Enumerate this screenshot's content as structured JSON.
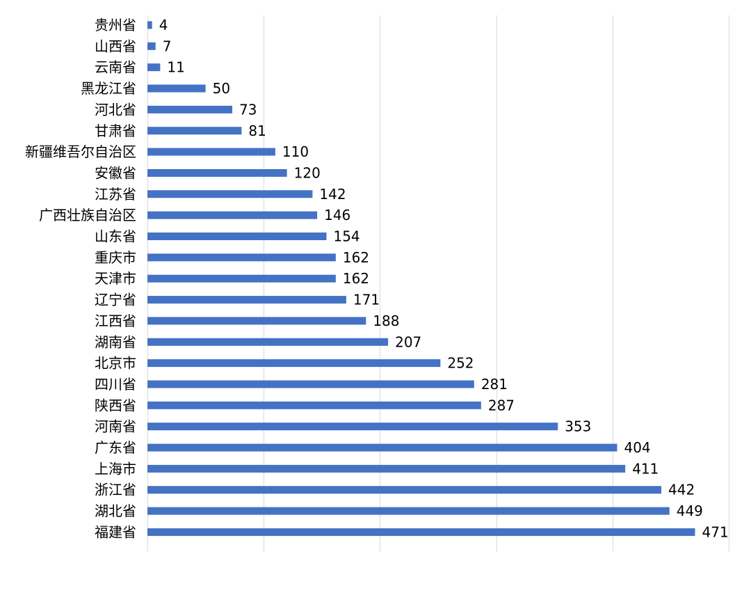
{
  "chart_data": {
    "type": "bar",
    "orientation": "horizontal",
    "categories": [
      "贵州省",
      "山西省",
      "云南省",
      "黑龙江省",
      "河北省",
      "甘肃省",
      "新疆维吾尔自治区",
      "安徽省",
      "江苏省",
      "广西壮族自治区",
      "山东省",
      "重庆市",
      "天津市",
      "辽宁省",
      "江西省",
      "湖南省",
      "北京市",
      "四川省",
      "陕西省",
      "河南省",
      "广东省",
      "上海市",
      "浙江省",
      "湖北省",
      "福建省"
    ],
    "values": [
      4,
      7,
      11,
      50,
      73,
      81,
      110,
      120,
      142,
      146,
      154,
      162,
      162,
      171,
      188,
      207,
      252,
      281,
      287,
      353,
      404,
      411,
      442,
      449,
      471
    ],
    "title": "",
    "xlabel": "",
    "ylabel": "",
    "xlim": [
      0,
      500
    ],
    "grid": "vertical",
    "legend": "none",
    "data_labels": true,
    "colors": {
      "bar": "#4472C4",
      "grid": "#D9D9D9",
      "text": "#000000"
    }
  }
}
